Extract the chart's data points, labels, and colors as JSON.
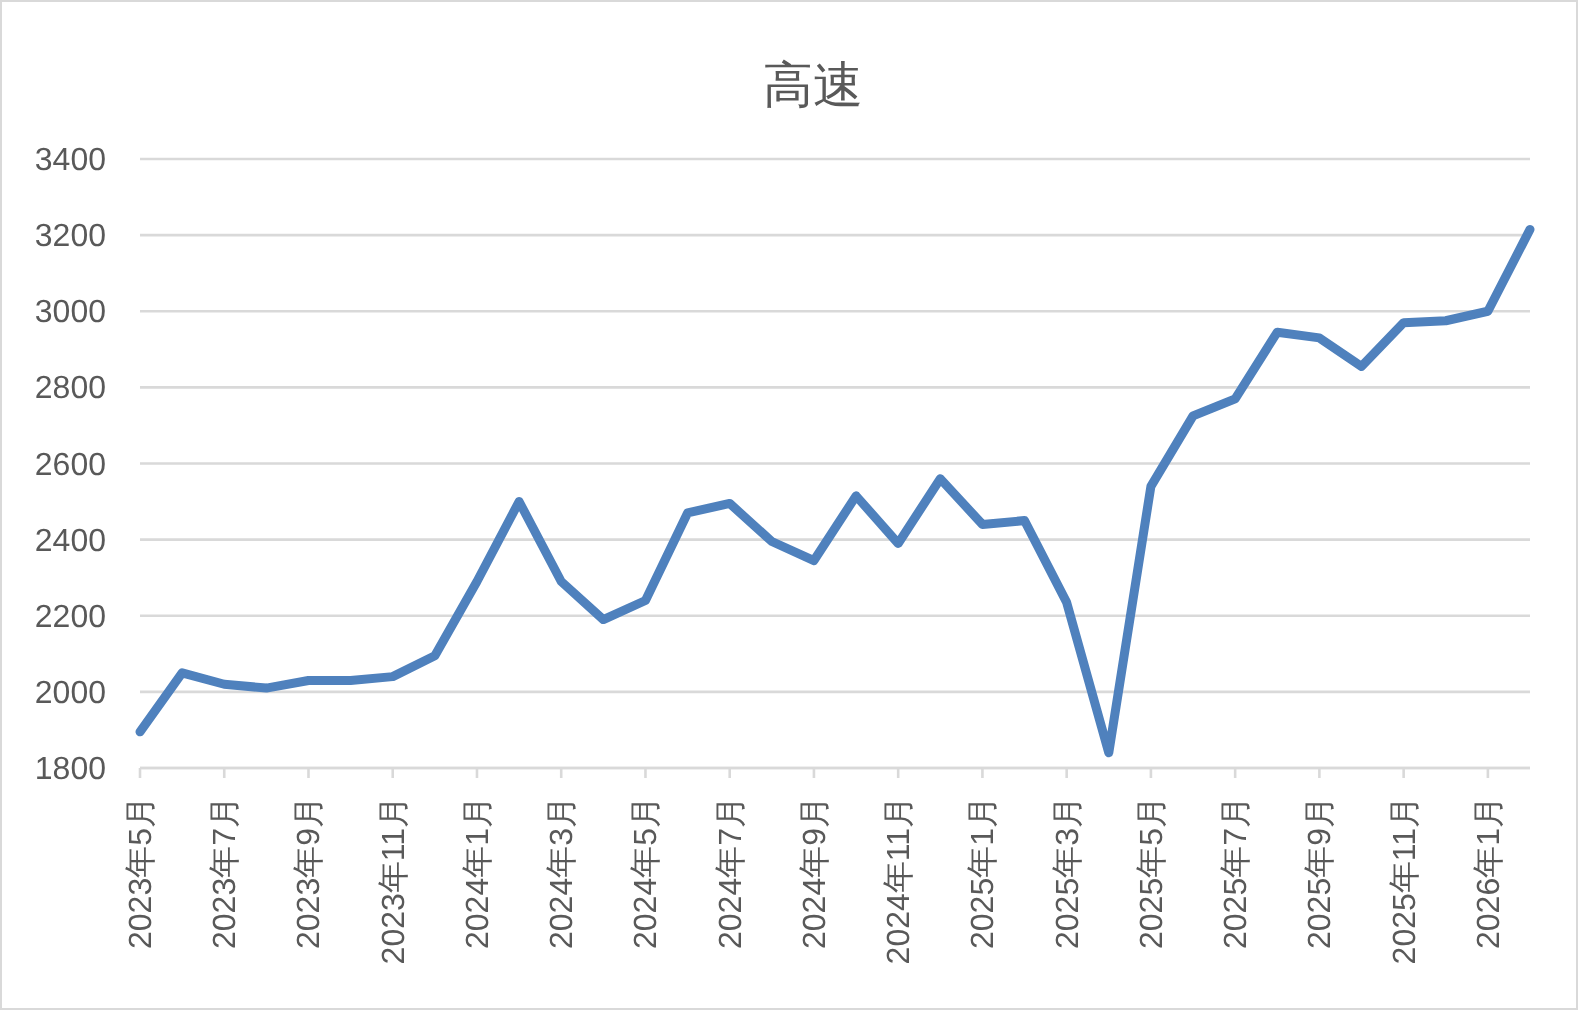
{
  "chart_data": {
    "type": "line",
    "title": "高速",
    "categories": [
      "2023年5月",
      null,
      "2023年7月",
      null,
      "2023年9月",
      null,
      "2023年11月",
      null,
      "2024年1月",
      null,
      "2024年3月",
      null,
      "2024年5月",
      null,
      "2024年7月",
      null,
      "2024年9月",
      null,
      "2024年11月",
      null,
      "2025年1月",
      null,
      "2025年3月",
      null,
      "2025年5月",
      null,
      "2025年7月",
      null,
      "2025年9月",
      null,
      "2025年11月",
      null,
      "2026年1月",
      null
    ],
    "values": [
      1895,
      2050,
      2020,
      2010,
      2030,
      2030,
      2040,
      2095,
      2290,
      2500,
      2290,
      2190,
      2240,
      2470,
      2495,
      2395,
      2345,
      2515,
      2390,
      2560,
      2440,
      2450,
      2235,
      1840,
      2540,
      2725,
      2770,
      2945,
      2930,
      2855,
      2970,
      2975,
      3000,
      3215
    ],
    "color": "#4f81bd",
    "ylim": [
      1800,
      3400
    ],
    "yticks": [
      1800,
      2000,
      2200,
      2400,
      2600,
      2800,
      3000,
      3200,
      3400
    ],
    "grid": "y"
  }
}
